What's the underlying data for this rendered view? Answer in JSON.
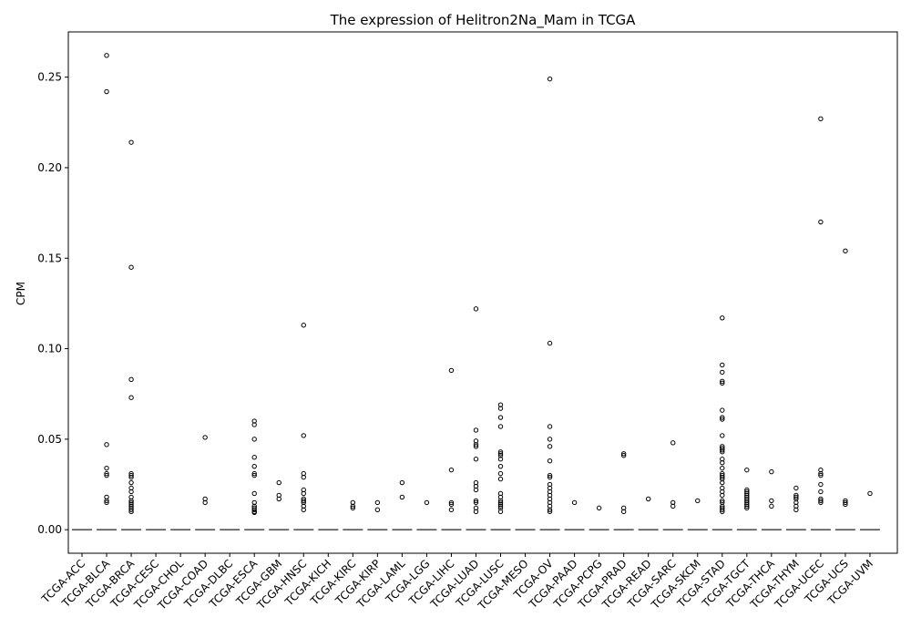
{
  "chart_data": {
    "type": "box",
    "title": "The expression of Helitron2Na_Mam in TCGA",
    "xlabel": "",
    "ylabel": "CPM",
    "ylim": [
      -0.013,
      0.275
    ],
    "yticks": [
      0.0,
      0.05,
      0.1,
      0.15,
      0.2,
      0.25
    ],
    "ytick_labels": [
      "0.00",
      "0.05",
      "0.10",
      "0.15",
      "0.20",
      "0.25"
    ],
    "grid": false,
    "categories": [
      "TCGA-ACC",
      "TCGA-BLCA",
      "TCGA-BRCA",
      "TCGA-CESC",
      "TCGA-CHOL",
      "TCGA-COAD",
      "TCGA-DLBC",
      "TCGA-ESCA",
      "TCGA-GBM",
      "TCGA-HNSC",
      "TCGA-KICH",
      "TCGA-KIRC",
      "TCGA-KIRP",
      "TCGA-LAML",
      "TCGA-LGG",
      "TCGA-LIHC",
      "TCGA-LUAD",
      "TCGA-LUSC",
      "TCGA-MESO",
      "TCGA-OV",
      "TCGA-PAAD",
      "TCGA-PCPG",
      "TCGA-PRAD",
      "TCGA-READ",
      "TCGA-SARC",
      "TCGA-SKCM",
      "TCGA-STAD",
      "TCGA-TGCT",
      "TCGA-THCA",
      "TCGA-THYM",
      "TCGA-UCEC",
      "TCGA-UCS",
      "TCGA-UVM"
    ],
    "median": [
      0,
      0,
      0,
      0,
      0,
      0,
      0,
      0,
      0,
      0,
      0,
      0,
      0,
      0,
      0,
      0,
      0,
      0,
      0,
      0,
      0,
      0,
      0,
      0,
      0,
      0,
      0,
      0,
      0,
      0,
      0,
      0,
      0
    ],
    "outliers": [
      [],
      [
        0.262,
        0.242,
        0.047,
        0.034,
        0.031,
        0.03,
        0.018,
        0.016,
        0.015
      ],
      [
        0.214,
        0.145,
        0.083,
        0.073,
        0.031,
        0.03,
        0.029,
        0.026,
        0.023,
        0.021,
        0.018,
        0.016,
        0.015,
        0.014,
        0.013,
        0.012,
        0.011,
        0.01
      ],
      [],
      [],
      [
        0.051,
        0.017,
        0.015
      ],
      [],
      [
        0.06,
        0.058,
        0.05,
        0.04,
        0.035,
        0.031,
        0.03,
        0.02,
        0.015,
        0.013,
        0.012,
        0.011,
        0.01,
        0.0095
      ],
      [
        0.026,
        0.019,
        0.017
      ],
      [
        0.113,
        0.052,
        0.031,
        0.029,
        0.022,
        0.02,
        0.017,
        0.016,
        0.015,
        0.013,
        0.011
      ],
      [],
      [
        0.015,
        0.013,
        0.012
      ],
      [
        0.015,
        0.011
      ],
      [
        0.026,
        0.018
      ],
      [
        0.015
      ],
      [
        0.088,
        0.033,
        0.015,
        0.014,
        0.011
      ],
      [
        0.122,
        0.055,
        0.049,
        0.047,
        0.046,
        0.039,
        0.026,
        0.024,
        0.022,
        0.016,
        0.015,
        0.012,
        0.01
      ],
      [
        0.069,
        0.067,
        0.062,
        0.057,
        0.043,
        0.042,
        0.041,
        0.039,
        0.035,
        0.031,
        0.028,
        0.02,
        0.018,
        0.016,
        0.015,
        0.014,
        0.013,
        0.012,
        0.01
      ],
      [],
      [
        0.249,
        0.103,
        0.057,
        0.05,
        0.046,
        0.038,
        0.03,
        0.029,
        0.025,
        0.023,
        0.021,
        0.019,
        0.017,
        0.015,
        0.013,
        0.011,
        0.01
      ],
      [
        0.015
      ],
      [
        0.012
      ],
      [
        0.042,
        0.041,
        0.012,
        0.01
      ],
      [
        0.017
      ],
      [
        0.048,
        0.015,
        0.013
      ],
      [
        0.016
      ],
      [
        0.117,
        0.091,
        0.087,
        0.082,
        0.081,
        0.066,
        0.062,
        0.061,
        0.052,
        0.046,
        0.045,
        0.044,
        0.043,
        0.039,
        0.037,
        0.034,
        0.031,
        0.03,
        0.029,
        0.028,
        0.026,
        0.023,
        0.021,
        0.019,
        0.016,
        0.015,
        0.013,
        0.012,
        0.011,
        0.01
      ],
      [
        0.033,
        0.022,
        0.021,
        0.02,
        0.019,
        0.018,
        0.017,
        0.016,
        0.015,
        0.014,
        0.013,
        0.012
      ],
      [
        0.032,
        0.016,
        0.013
      ],
      [
        0.023,
        0.019,
        0.018,
        0.017,
        0.015,
        0.013,
        0.011
      ],
      [
        0.227,
        0.17,
        0.033,
        0.031,
        0.03,
        0.025,
        0.021,
        0.017,
        0.016,
        0.015
      ],
      [
        0.154,
        0.016,
        0.015,
        0.014
      ],
      [
        0.02
      ]
    ],
    "colors": {
      "outlier_edge": "#000000",
      "median": "#555555",
      "axis": "#000000"
    }
  }
}
